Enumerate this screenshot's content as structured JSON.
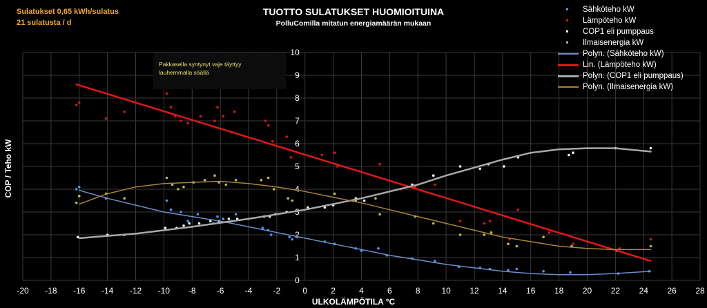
{
  "notes": {
    "line1": "Sulatukset 0,65 kWh/sulatus",
    "line2": "21 sulatusta / d",
    "annotation_line1": "Pakkasella syntynyt vaje täyttyy",
    "annotation_line2": "lauhemmalla säällä"
  },
  "colors": {
    "background": "#000000",
    "grid": "#3a3a3a",
    "blue": "#4aa3ff",
    "red": "#e01818",
    "white": "#ffffff",
    "olive": "#c8c840",
    "blue_trend": "#6e8ec8",
    "grey_trend": "#a8a8a8",
    "brown_trend": "#a88438",
    "note": "#f0a830",
    "annotation": "#e8e070"
  },
  "chart_data": {
    "type": "scatter",
    "title": "TUOTTO SULATUKSET HUOMIOITUINA",
    "subtitle": "PolluComilla mitatun energiamäärän mukaan",
    "xlabel": "ULKOLÄMPÖTILA °C",
    "ylabel": "COP  /  Teho kW",
    "xlim": [
      -20,
      28
    ],
    "ylim": [
      0,
      10
    ],
    "xticks": [
      "-20",
      "-18",
      "-16",
      "-14",
      "-12",
      "-10",
      "-8",
      "-6",
      "-4",
      "-2",
      "0",
      "2",
      "4",
      "6",
      "8",
      "10",
      "12",
      "14",
      "16",
      "18",
      "20",
      "22",
      "24",
      "26",
      "28"
    ],
    "yticks": [
      "0",
      "1",
      "2",
      "3",
      "4",
      "5",
      "6",
      "7",
      "8",
      "9",
      "10"
    ],
    "grid": true,
    "legend_position": "top-right",
    "series": [
      {
        "name": "Sähköteho kW",
        "kind": "points",
        "color": "#4aa3ff",
        "x": [
          -16.2,
          -16.0,
          -14.1,
          -9.8,
          -9.5,
          -8.8,
          -8.3,
          -7.6,
          -6.5,
          -6.2,
          -5.8,
          -5.2,
          -4.9,
          -3.0,
          -2.6,
          -2.4,
          -1.1,
          -0.9,
          1.4,
          2.1,
          3.6,
          4.0,
          5.2,
          5.8,
          7.6,
          9.2,
          10.9,
          12.4,
          13.1,
          14.4,
          15.0,
          16.9,
          18.8,
          22.2,
          24.4
        ],
        "y": [
          4.0,
          4.1,
          3.6,
          3.5,
          3.1,
          3.0,
          2.6,
          2.9,
          2.5,
          2.8,
          2.7,
          2.6,
          2.9,
          2.3,
          2.2,
          2.0,
          1.9,
          1.8,
          1.7,
          1.6,
          1.4,
          1.3,
          1.4,
          1.1,
          0.95,
          0.85,
          0.6,
          0.55,
          0.5,
          0.45,
          0.5,
          0.4,
          0.35,
          0.3,
          0.4
        ]
      },
      {
        "name": "Lämpöteho kW",
        "kind": "points",
        "color": "#e01818",
        "x": [
          -16.2,
          -16.0,
          -14.1,
          -12.8,
          -9.8,
          -9.5,
          -9.2,
          -8.8,
          -8.3,
          -7.4,
          -6.4,
          -6.2,
          -5.8,
          -5.0,
          -5.2,
          -2.8,
          -2.6,
          -2.3,
          -1.3,
          -1.0,
          1.2,
          2.1,
          2.3,
          5.3,
          6.8,
          7.8,
          9.2,
          11.0,
          12.7,
          13.1,
          14.5,
          15.1,
          17.3,
          19.0,
          22.3,
          24.5
        ],
        "y": [
          7.7,
          7.8,
          7.1,
          7.4,
          8.2,
          7.6,
          7.2,
          7.0,
          6.9,
          7.2,
          7.0,
          7.6,
          7.2,
          7.4,
          6.5,
          7.0,
          6.8,
          6.1,
          6.3,
          5.4,
          5.5,
          5.6,
          5.0,
          5.1,
          4.0,
          4.1,
          4.2,
          2.6,
          2.5,
          2.6,
          1.8,
          3.1,
          2.1,
          1.6,
          1.4,
          1.8
        ]
      },
      {
        "name": "COP1 eli pumppaus",
        "kind": "points",
        "color": "#ffffff",
        "x": [
          -16.1,
          -14.0,
          -12.8,
          -9.9,
          -9.1,
          -8.6,
          -8.2,
          -7.5,
          -6.7,
          -6.1,
          -5.4,
          -4.8,
          -2.9,
          -2.5,
          -2.1,
          -1.3,
          0.2,
          1.4,
          2.0,
          3.6,
          4.2,
          7.6,
          9.1,
          11.0,
          12.4,
          13.0,
          14.1,
          15.1,
          18.7,
          19.0,
          22.0,
          24.5
        ],
        "y": [
          1.9,
          2.0,
          2.0,
          2.3,
          2.3,
          2.4,
          2.5,
          2.5,
          2.6,
          2.6,
          2.7,
          2.7,
          2.8,
          2.8,
          2.9,
          3.0,
          3.2,
          3.2,
          3.3,
          3.6,
          3.5,
          4.2,
          4.6,
          5.0,
          4.9,
          5.1,
          5.0,
          5.4,
          5.5,
          5.6,
          5.8,
          5.8
        ]
      },
      {
        "name": "Ilmaisenergia kW",
        "kind": "points",
        "color": "#c8c840",
        "x": [
          -16.2,
          -16.0,
          -14.1,
          -12.8,
          -9.8,
          -9.4,
          -9.0,
          -8.6,
          -7.9,
          -7.1,
          -6.4,
          -6.1,
          -5.6,
          -4.9,
          -3.1,
          -2.6,
          -2.2,
          -1.2,
          -0.9,
          2.1,
          3.6,
          5.0,
          5.3,
          7.8,
          9.1,
          11.0,
          12.7,
          13.2,
          14.4,
          15.0,
          16.9,
          18.9,
          22.1,
          24.5
        ],
        "y": [
          3.4,
          3.7,
          3.8,
          3.6,
          4.5,
          4.2,
          4.0,
          4.1,
          4.3,
          4.4,
          4.6,
          4.3,
          4.2,
          4.4,
          4.4,
          4.5,
          4.0,
          3.6,
          3.5,
          3.8,
          3.5,
          3.6,
          2.9,
          2.8,
          2.5,
          2.0,
          2.0,
          2.1,
          1.6,
          1.5,
          1.9,
          1.5,
          1.3,
          1.5
        ]
      },
      {
        "name": "Polyn. (Sähköteho kW)",
        "kind": "trend",
        "color": "#6e8ec8",
        "width": 1.5,
        "x": [
          -16,
          -14,
          -12,
          -10,
          -8,
          -6,
          -4,
          -2,
          0,
          2,
          4,
          6,
          8,
          10,
          12,
          14,
          16,
          18,
          20,
          22,
          24.5
        ],
        "y": [
          3.95,
          3.6,
          3.3,
          3.0,
          2.8,
          2.6,
          2.35,
          2.1,
          1.85,
          1.6,
          1.35,
          1.1,
          0.9,
          0.7,
          0.55,
          0.4,
          0.3,
          0.25,
          0.25,
          0.3,
          0.4
        ]
      },
      {
        "name": "Lin. (Lämpöteho kW)",
        "kind": "trend",
        "color": "#e01818",
        "width": 2.5,
        "x": [
          -16.2,
          24.5
        ],
        "y": [
          8.6,
          0.85
        ]
      },
      {
        "name": "Polyn. (COP1 eli pumppaus)",
        "kind": "trend",
        "color": "#a8a8a8",
        "width": 2.5,
        "x": [
          -16,
          -12,
          -8,
          -4,
          0,
          4,
          8,
          10,
          12,
          14,
          16,
          18,
          20,
          22,
          24.5
        ],
        "y": [
          1.85,
          2.05,
          2.35,
          2.7,
          3.1,
          3.6,
          4.2,
          4.6,
          4.95,
          5.3,
          5.6,
          5.75,
          5.8,
          5.8,
          5.65
        ]
      },
      {
        "name": "Polyn. (Ilmaisenergia kW)",
        "kind": "trend",
        "color": "#a88438",
        "width": 1.5,
        "x": [
          -16,
          -14,
          -12,
          -10,
          -8,
          -6,
          -4,
          -2,
          0,
          2,
          4,
          6,
          8,
          10,
          12,
          14,
          16,
          18,
          20,
          22,
          24.5
        ],
        "y": [
          3.35,
          3.8,
          4.1,
          4.25,
          4.3,
          4.35,
          4.25,
          4.1,
          3.9,
          3.65,
          3.4,
          3.1,
          2.8,
          2.5,
          2.2,
          1.9,
          1.7,
          1.5,
          1.4,
          1.35,
          1.35
        ]
      }
    ],
    "legend": [
      {
        "label": "Sähköteho kW",
        "kind": "points",
        "color": "#4aa3ff"
      },
      {
        "label": "Lämpöteho kW",
        "kind": "points",
        "color": "#e01818"
      },
      {
        "label": "COP1 eli pumppaus",
        "kind": "points",
        "color": "#ffffff"
      },
      {
        "label": "Ilmaisenergia kW",
        "kind": "points",
        "color": "#c8c840"
      },
      {
        "label": "Polyn. (Sähköteho kW)",
        "kind": "line",
        "color": "#6e8ec8"
      },
      {
        "label": "Lin. (Lämpöteho kW)",
        "kind": "line",
        "color": "#e01818"
      },
      {
        "label": "Polyn. (COP1 eli pumppaus)",
        "kind": "line",
        "color": "#a8a8a8"
      },
      {
        "label": "Polyn. (Ilmaisenergia kW)",
        "kind": "line",
        "color": "#a88438"
      }
    ]
  }
}
